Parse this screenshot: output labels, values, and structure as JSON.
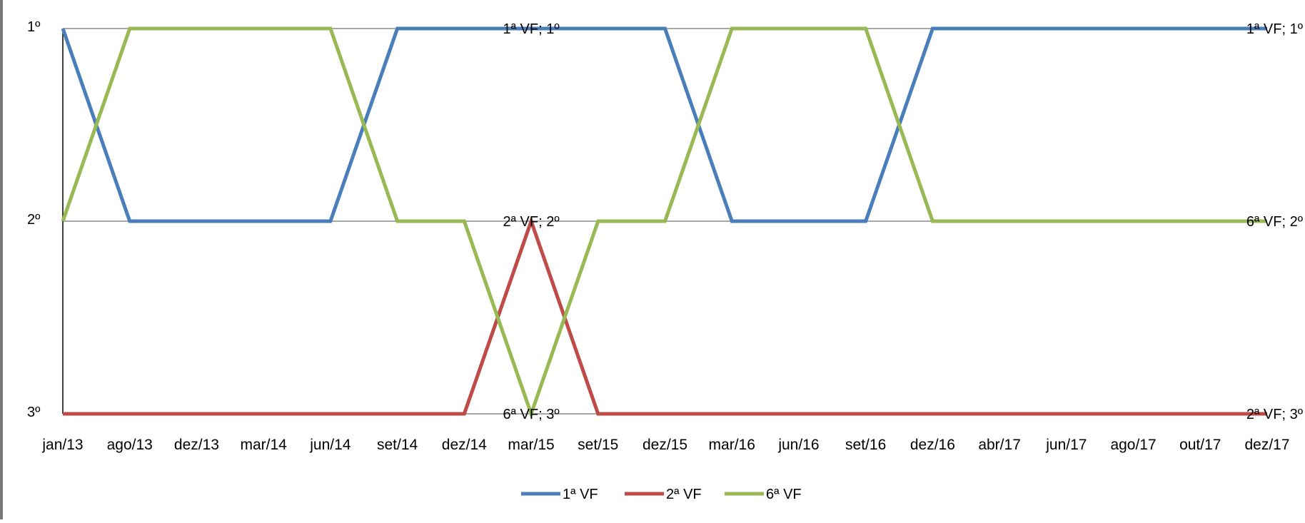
{
  "chart_data": {
    "type": "line",
    "title": "",
    "xlabel": "",
    "ylabel": "",
    "categories": [
      "jan/13",
      "ago/13",
      "dez/13",
      "mar/14",
      "jun/14",
      "set/14",
      "dez/14",
      "mar/15",
      "set/15",
      "dez/15",
      "mar/16",
      "jun/16",
      "set/16",
      "dez/16",
      "abr/17",
      "jun/17",
      "ago/17",
      "out/17",
      "dez/17"
    ],
    "y_ticks": [
      {
        "value": 1,
        "label": "1º"
      },
      {
        "value": 2,
        "label": "2º"
      },
      {
        "value": 3,
        "label": "3º"
      }
    ],
    "ylim": [
      1,
      3
    ],
    "y_inverted": true,
    "grid": true,
    "legend_position": "bottom",
    "series": [
      {
        "name": "1ª  VF",
        "color": "#4a7ebb",
        "values": [
          1,
          2,
          2,
          2,
          2,
          1,
          1,
          1,
          1,
          1,
          2,
          2,
          2,
          1,
          1,
          1,
          1,
          1,
          1
        ]
      },
      {
        "name": "2ª VF",
        "color": "#be4b48",
        "values": [
          3,
          3,
          3,
          3,
          3,
          3,
          3,
          2,
          3,
          3,
          3,
          3,
          3,
          3,
          3,
          3,
          3,
          3,
          3
        ]
      },
      {
        "name": "6ª VF",
        "color": "#98b954",
        "values": [
          2,
          1,
          1,
          1,
          1,
          2,
          2,
          3,
          2,
          2,
          1,
          1,
          1,
          2,
          2,
          2,
          2,
          2,
          2
        ]
      }
    ],
    "annotations": [
      {
        "text": "1ª  VF; 1º",
        "x": "mar/15",
        "y": 1
      },
      {
        "text": "2ª VF; 2º",
        "x": "mar/15",
        "y": 2
      },
      {
        "text": "6ª VF; 3º",
        "x": "mar/15",
        "y": 3
      },
      {
        "text": "1ª  VF; 1º",
        "x": "dez/17",
        "y": 1
      },
      {
        "text": "6ª VF; 2º",
        "x": "dez/17",
        "y": 2
      },
      {
        "text": "2ª VF; 3º",
        "x": "dez/17",
        "y": 3
      }
    ]
  }
}
